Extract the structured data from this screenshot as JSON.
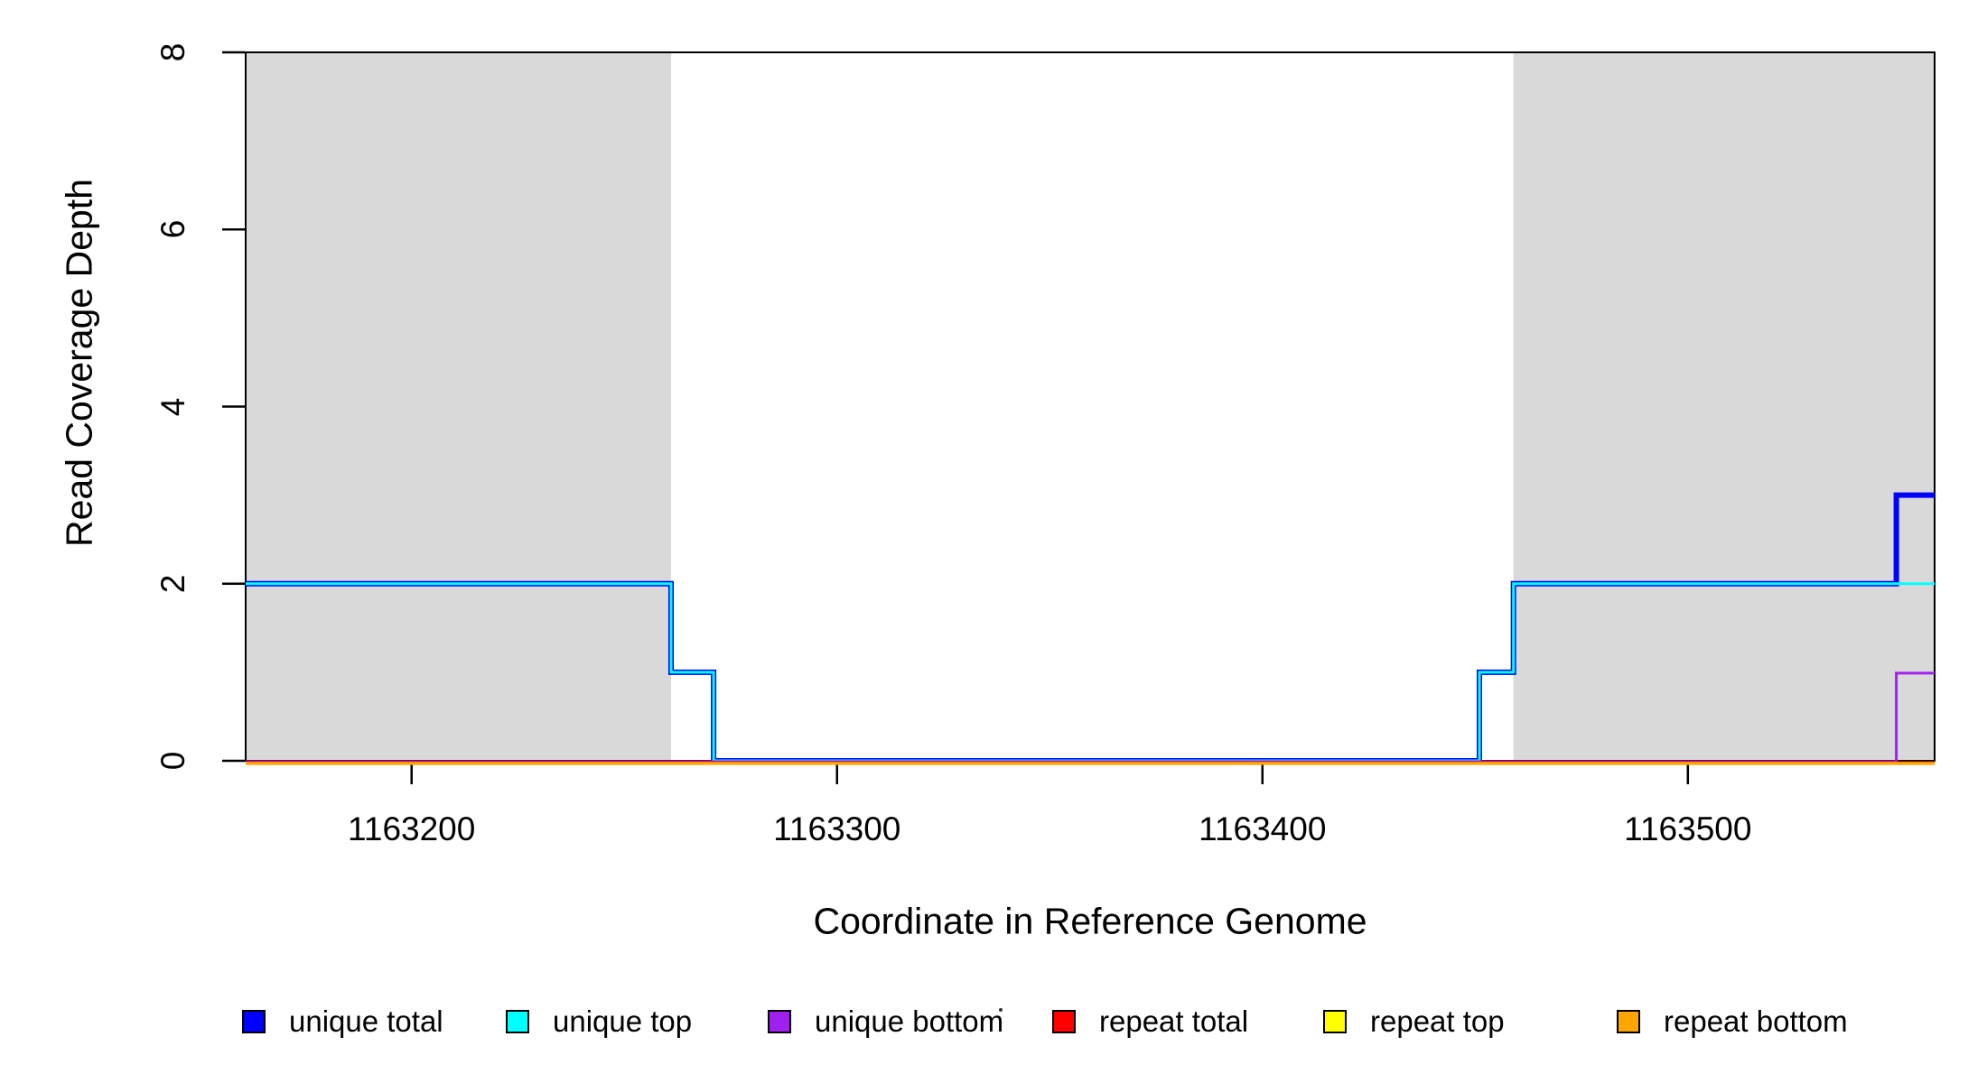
{
  "chart_data": {
    "type": "line",
    "title": "",
    "xlabel": "Coordinate in Reference Genome",
    "ylabel": "Read Coverage Depth",
    "xlim": [
      1163161,
      1163558
    ],
    "ylim": [
      0,
      8
    ],
    "x_ticks": [
      1163200,
      1163300,
      1163400,
      1163500
    ],
    "y_ticks": [
      0,
      2,
      4,
      6,
      8
    ],
    "grid": false,
    "legend_position": "bottom",
    "region_color": "#d9d9d9",
    "shaded_regions": [
      {
        "name": "shaded-region-left",
        "x0": 1163161,
        "x1": 1163261
      },
      {
        "name": "shaded-region-right",
        "x0": 1163459,
        "x1": 1163558
      }
    ],
    "series": [
      {
        "name": "unique total",
        "color": "#0000ff",
        "step_points": [
          [
            1163161,
            2
          ],
          [
            1163261,
            2
          ],
          [
            1163261,
            1
          ],
          [
            1163271,
            1
          ],
          [
            1163271,
            0
          ],
          [
            1163451,
            0
          ],
          [
            1163451,
            1
          ],
          [
            1163459,
            1
          ],
          [
            1163459,
            2
          ],
          [
            1163549,
            2
          ],
          [
            1163549,
            3
          ],
          [
            1163558,
            3
          ]
        ]
      },
      {
        "name": "unique top",
        "color": "#00ffff",
        "step_points": [
          [
            1163161,
            2
          ],
          [
            1163261,
            2
          ],
          [
            1163261,
            1
          ],
          [
            1163271,
            1
          ],
          [
            1163271,
            0
          ],
          [
            1163451,
            0
          ],
          [
            1163451,
            1
          ],
          [
            1163459,
            1
          ],
          [
            1163459,
            2
          ],
          [
            1163558,
            2
          ]
        ]
      },
      {
        "name": "unique bottom",
        "color": "#a020f0",
        "step_points": [
          [
            1163161,
            0
          ],
          [
            1163549,
            0
          ],
          [
            1163549,
            1
          ],
          [
            1163558,
            1
          ]
        ]
      },
      {
        "name": "repeat total",
        "color": "#ff0000",
        "step_points": [
          [
            1163161,
            0
          ],
          [
            1163558,
            0
          ]
        ]
      },
      {
        "name": "repeat top",
        "color": "#ffff00",
        "step_points": [
          [
            1163161,
            0
          ],
          [
            1163558,
            0
          ]
        ]
      },
      {
        "name": "repeat bottom",
        "color": "#ffa500",
        "step_points": [
          [
            1163161,
            0
          ],
          [
            1163558,
            0
          ]
        ]
      }
    ]
  },
  "legend": {
    "items": [
      {
        "label": "unique total",
        "color": "#0000ff"
      },
      {
        "label": "unique top",
        "color": "#00ffff"
      },
      {
        "label": "unique bottom",
        "color": "#a020f0"
      },
      {
        "label": "repeat total",
        "color": "#ff0000"
      },
      {
        "label": "repeat top",
        "color": "#ffff00"
      },
      {
        "label": "repeat bottom",
        "color": "#ffa500"
      }
    ]
  }
}
